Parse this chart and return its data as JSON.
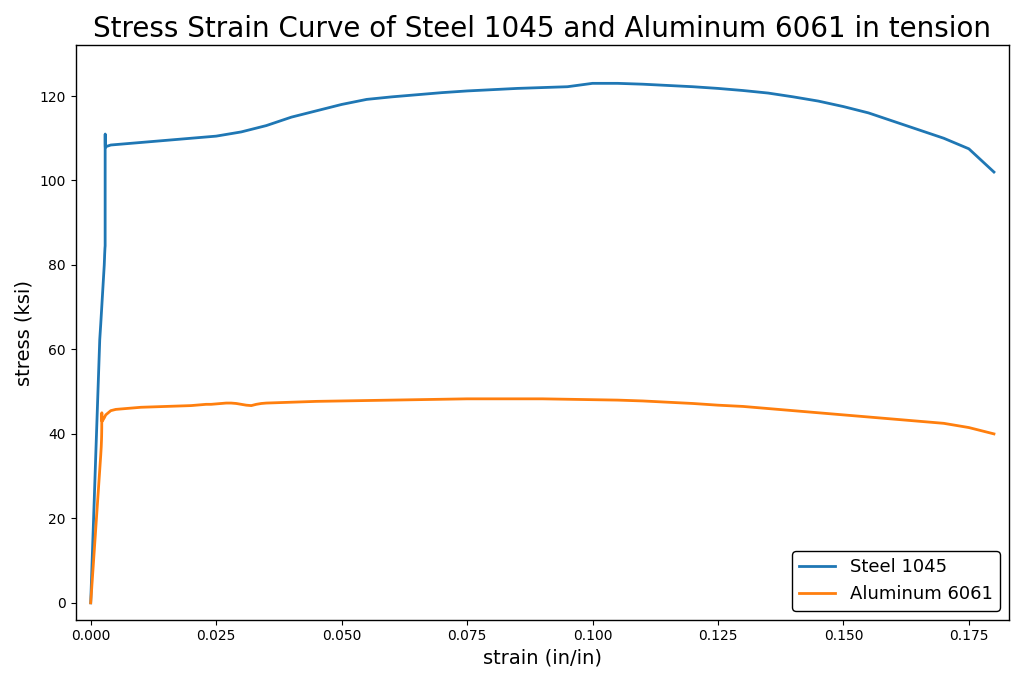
{
  "title": "Stress Strain Curve of Steel 1045 and Aluminum 6061 in tension",
  "xlabel": "strain (in/in)",
  "ylabel": "stress (ksi)",
  "title_fontsize": 20,
  "axis_label_fontsize": 14,
  "legend_fontsize": 13,
  "steel_color": "#1f77b4",
  "aluminum_color": "#ff7f0e",
  "steel_label": "Steel 1045",
  "aluminum_label": "Aluminum 6061",
  "linewidth": 2.0,
  "xlim": [
    -0.003,
    0.183
  ],
  "ylim": [
    -4,
    132
  ],
  "background_color": "#ffffff",
  "steel_strain": [
    0.0,
    2.9e-05,
    5.8e-05,
    8.7e-05,
    0.000116,
    0.000145,
    0.000174,
    0.000203,
    0.00025,
    0.0003,
    0.0004,
    0.0005,
    0.0006,
    0.0007,
    0.0008,
    0.0009,
    0.001,
    0.0012,
    0.0014,
    0.0016,
    0.0018,
    0.002,
    0.0022,
    0.0024,
    0.0026,
    0.0027,
    0.00275,
    0.00278,
    0.0028,
    0.00282,
    0.00284,
    0.00286,
    0.002875,
    0.00288,
    0.00289,
    0.0029,
    0.00291,
    0.00292,
    0.003,
    0.0035,
    0.004,
    0.005,
    0.006,
    0.007,
    0.008,
    0.009,
    0.01,
    0.015,
    0.02,
    0.025,
    0.03,
    0.035,
    0.04,
    0.045,
    0.05,
    0.055,
    0.06,
    0.065,
    0.07,
    0.075,
    0.08,
    0.085,
    0.09,
    0.095,
    0.1,
    0.105,
    0.11,
    0.115,
    0.12,
    0.125,
    0.13,
    0.135,
    0.14,
    0.145,
    0.15,
    0.155,
    0.16,
    0.165,
    0.17,
    0.175,
    0.18
  ],
  "steel_stress": [
    0.0,
    1.0,
    2.0,
    3.0,
    4.0,
    5.0,
    6.0,
    7.0,
    8.7,
    10.4,
    13.9,
    17.3,
    20.8,
    24.2,
    27.7,
    31.2,
    34.7,
    41.6,
    48.5,
    55.4,
    62.3,
    66.0,
    70.0,
    74.0,
    78.0,
    80.0,
    81.5,
    82.5,
    83.0,
    83.5,
    84.0,
    84.3,
    84.5,
    110.5,
    111.0,
    108.5,
    108.0,
    107.8,
    108.0,
    108.2,
    108.4,
    108.5,
    108.6,
    108.7,
    108.8,
    108.9,
    109.0,
    109.5,
    110.0,
    110.5,
    111.5,
    113.0,
    115.0,
    116.5,
    118.0,
    119.2,
    119.8,
    120.3,
    120.8,
    121.2,
    121.5,
    121.8,
    122.0,
    122.2,
    123.0,
    123.0,
    122.8,
    122.5,
    122.2,
    121.8,
    121.3,
    120.7,
    119.8,
    118.8,
    117.5,
    116.0,
    114.0,
    112.0,
    110.0,
    107.5,
    102.0
  ],
  "aluminum_strain": [
    0.0,
    2.9e-05,
    5.8e-05,
    8.7e-05,
    0.000116,
    0.000145,
    0.000174,
    0.000203,
    0.00025,
    0.0003,
    0.0004,
    0.0005,
    0.0006,
    0.0007,
    0.0008,
    0.0009,
    0.001,
    0.0012,
    0.0014,
    0.0016,
    0.0018,
    0.002,
    0.0021,
    0.00215,
    0.002175,
    0.00219,
    0.0022,
    0.00221,
    0.00222,
    0.00223,
    0.00225,
    0.0023,
    0.0024,
    0.0025,
    0.0027,
    0.003,
    0.0035,
    0.004,
    0.005,
    0.006,
    0.007,
    0.008,
    0.009,
    0.01,
    0.015,
    0.02,
    0.022,
    0.023,
    0.024,
    0.025,
    0.026,
    0.027,
    0.028,
    0.029,
    0.03,
    0.031,
    0.032,
    0.033,
    0.034,
    0.035,
    0.04,
    0.045,
    0.05,
    0.055,
    0.06,
    0.065,
    0.07,
    0.075,
    0.08,
    0.085,
    0.09,
    0.095,
    0.1,
    0.105,
    0.11,
    0.115,
    0.12,
    0.125,
    0.13,
    0.135,
    0.14,
    0.145,
    0.15,
    0.155,
    0.16,
    0.165,
    0.17,
    0.175,
    0.18
  ],
  "aluminum_stress": [
    0.0,
    0.5,
    1.0,
    1.5,
    2.0,
    2.5,
    3.0,
    3.5,
    4.4,
    5.2,
    7.0,
    8.7,
    10.5,
    12.2,
    14.0,
    15.7,
    17.5,
    21.0,
    24.5,
    28.0,
    31.5,
    35.0,
    37.0,
    38.5,
    39.5,
    40.5,
    41.5,
    44.5,
    45.0,
    43.5,
    43.0,
    43.0,
    43.2,
    43.4,
    43.8,
    44.5,
    45.0,
    45.5,
    45.8,
    45.9,
    46.0,
    46.1,
    46.2,
    46.3,
    46.5,
    46.7,
    46.9,
    47.0,
    47.0,
    47.1,
    47.2,
    47.3,
    47.3,
    47.2,
    47.0,
    46.8,
    46.7,
    47.0,
    47.2,
    47.3,
    47.5,
    47.7,
    47.8,
    47.9,
    48.0,
    48.1,
    48.2,
    48.3,
    48.3,
    48.3,
    48.3,
    48.2,
    48.1,
    48.0,
    47.8,
    47.5,
    47.2,
    46.8,
    46.5,
    46.0,
    45.5,
    45.0,
    44.5,
    44.0,
    43.5,
    43.0,
    42.5,
    41.5,
    40.0
  ]
}
